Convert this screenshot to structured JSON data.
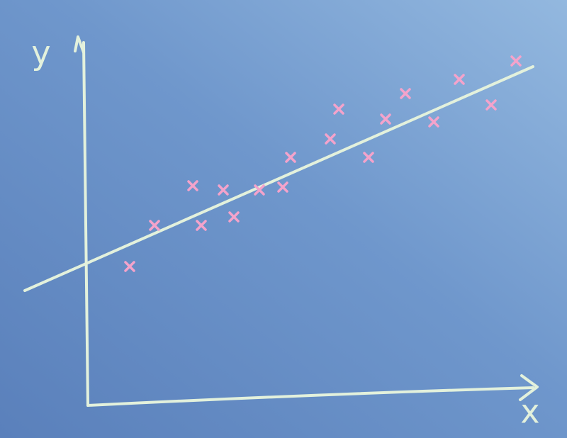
{
  "chart_data": {
    "type": "scatter",
    "x_label": "x",
    "y_label": "y",
    "xlim": [
      -9.5,
      64
    ],
    "ylim": [
      0,
      53
    ],
    "points": {
      "color": "#f4a3cb",
      "x": [
        5.8,
        9.3,
        14.7,
        15.9,
        19,
        20.5,
        24.1,
        27.4,
        28.5,
        34.1,
        35.3,
        39.5,
        41.9,
        44.7,
        48.7,
        52.3,
        56.8,
        60.3
      ],
      "y": [
        19.4,
        25.2,
        30.8,
        25.2,
        30.2,
        26.4,
        30.2,
        30.6,
        34.8,
        37.4,
        41.6,
        34.8,
        40.2,
        43.8,
        39.8,
        45.8,
        42.2,
        48.4
      ]
    },
    "trend_line": {
      "color": "#e3f1dc",
      "x": [
        -9,
        62.7
      ],
      "y": [
        16,
        47.6
      ]
    }
  }
}
